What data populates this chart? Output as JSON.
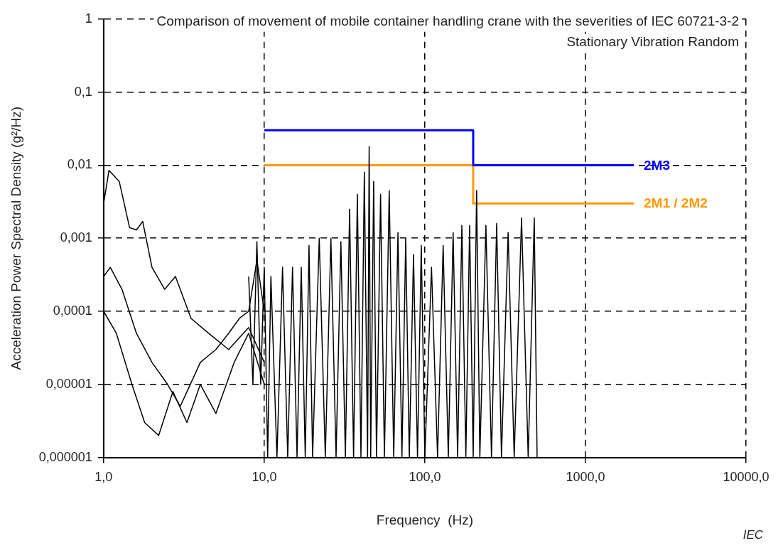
{
  "chart_data": {
    "type": "line",
    "title": "Comparison of movement of mobile container handling crane with the severities of IEC 60721-3-2  Stationary Vibration Random",
    "xlabel": "Frequency  (Hz)",
    "ylabel": "Acceleration Power Spectral Density (g²/Hz)",
    "log": "xy",
    "grid": true,
    "legend": false,
    "marker": "none",
    "line_style": "solid",
    "xlim": [
      1,
      10000
    ],
    "ylim": [
      1e-06,
      1
    ],
    "xticks": [
      {
        "value": 1,
        "label": "1,0"
      },
      {
        "value": 10,
        "label": "10,0"
      },
      {
        "value": 100,
        "label": "100,0"
      },
      {
        "value": 1000,
        "label": "1000,0"
      },
      {
        "value": 10000,
        "label": "10000,0"
      }
    ],
    "yticks": [
      {
        "value": 1e-06,
        "label": "0,000001"
      },
      {
        "value": 1e-05,
        "label": "0,00001"
      },
      {
        "value": 0.0001,
        "label": "0,0001"
      },
      {
        "value": 0.001,
        "label": "0,001"
      },
      {
        "value": 0.01,
        "label": "0,01"
      },
      {
        "value": 0.1,
        "label": "0,1"
      },
      1
    ],
    "annotations": [
      "IEC"
    ],
    "series": [
      {
        "color": "#000000",
        "x": [
          1,
          1.08,
          1.25,
          1.45,
          1.6,
          1.75,
          2.0,
          2.4,
          2.8,
          3.5,
          4.5,
          6,
          8,
          10
        ],
        "values": [
          0.003,
          0.0085,
          0.006,
          0.0014,
          0.0013,
          0.0017,
          0.0004,
          0.0002,
          0.0003,
          8e-05,
          5e-05,
          3e-05,
          6e-05,
          2e-05
        ]
      },
      {
        "color": "#000000",
        "x": [
          1,
          1.1,
          1.3,
          1.6,
          2,
          2.5,
          3,
          4,
          5,
          6,
          7,
          8,
          9,
          10
        ],
        "values": [
          0.0003,
          0.0004,
          0.0002,
          5e-05,
          2e-05,
          1e-05,
          5e-06,
          2e-05,
          3e-05,
          5e-05,
          8e-05,
          0.0001,
          0.0005,
          0.0001
        ]
      },
      {
        "color": "#000000",
        "x": [
          1,
          1.2,
          1.5,
          1.8,
          2.2,
          2.7,
          3.3,
          4,
          5,
          6.5,
          8,
          10
        ],
        "values": [
          0.0001,
          5e-05,
          1e-05,
          3e-06,
          2e-06,
          8e-06,
          3e-06,
          1e-05,
          4e-06,
          2e-05,
          5e-05,
          1e-05
        ]
      },
      {
        "color": "#000000",
        "x": [
          8,
          8.5,
          9,
          9.5,
          10,
          10.5,
          11,
          12,
          13,
          14,
          15,
          16,
          17,
          18,
          19,
          20,
          22,
          24,
          26,
          28,
          30,
          32,
          34,
          36,
          38,
          40,
          42,
          44,
          45,
          46,
          48,
          50,
          53,
          56,
          60,
          64,
          68,
          72,
          76,
          80,
          85,
          90,
          95,
          100,
          110,
          120,
          130,
          140,
          150,
          160,
          170,
          180,
          190,
          200,
          210,
          220,
          240,
          260,
          280,
          300,
          330,
          360,
          400,
          440,
          480,
          500
        ],
        "values": [
          0.0003,
          1e-05,
          0.0009,
          1e-05,
          0.0004,
          1e-06,
          0.0003,
          1e-06,
          0.0004,
          1e-06,
          0.0004,
          1e-06,
          0.0004,
          1e-06,
          0.0008,
          1e-06,
          0.001,
          1e-06,
          0.001,
          1e-06,
          0.0009,
          1e-06,
          0.0025,
          1e-06,
          0.004,
          1e-06,
          0.008,
          1e-06,
          0.018,
          1e-06,
          0.006,
          1e-06,
          0.004,
          1e-06,
          0.0045,
          1e-06,
          0.0012,
          1e-06,
          0.001,
          1e-06,
          0.0006,
          1e-06,
          0.0008,
          1e-06,
          0.0004,
          1e-06,
          0.0008,
          1e-06,
          0.0012,
          1e-06,
          0.0015,
          1e-06,
          0.0015,
          1e-06,
          0.0045,
          1e-06,
          0.0015,
          1e-06,
          0.0016,
          1e-06,
          0.0012,
          1e-06,
          0.0019,
          1e-06,
          0.0019,
          1e-06
        ]
      },
      {
        "name": "2M3",
        "color": "#0000ff",
        "x": [
          10,
          200,
          200,
          2000
        ],
        "values": [
          0.03,
          0.03,
          0.01,
          0.01
        ]
      },
      {
        "name": "2M1 / 2M2",
        "color": "#ff9900",
        "x": [
          10,
          200,
          200,
          2000
        ],
        "values": [
          0.01,
          0.01,
          0.003,
          0.003
        ]
      }
    ]
  }
}
